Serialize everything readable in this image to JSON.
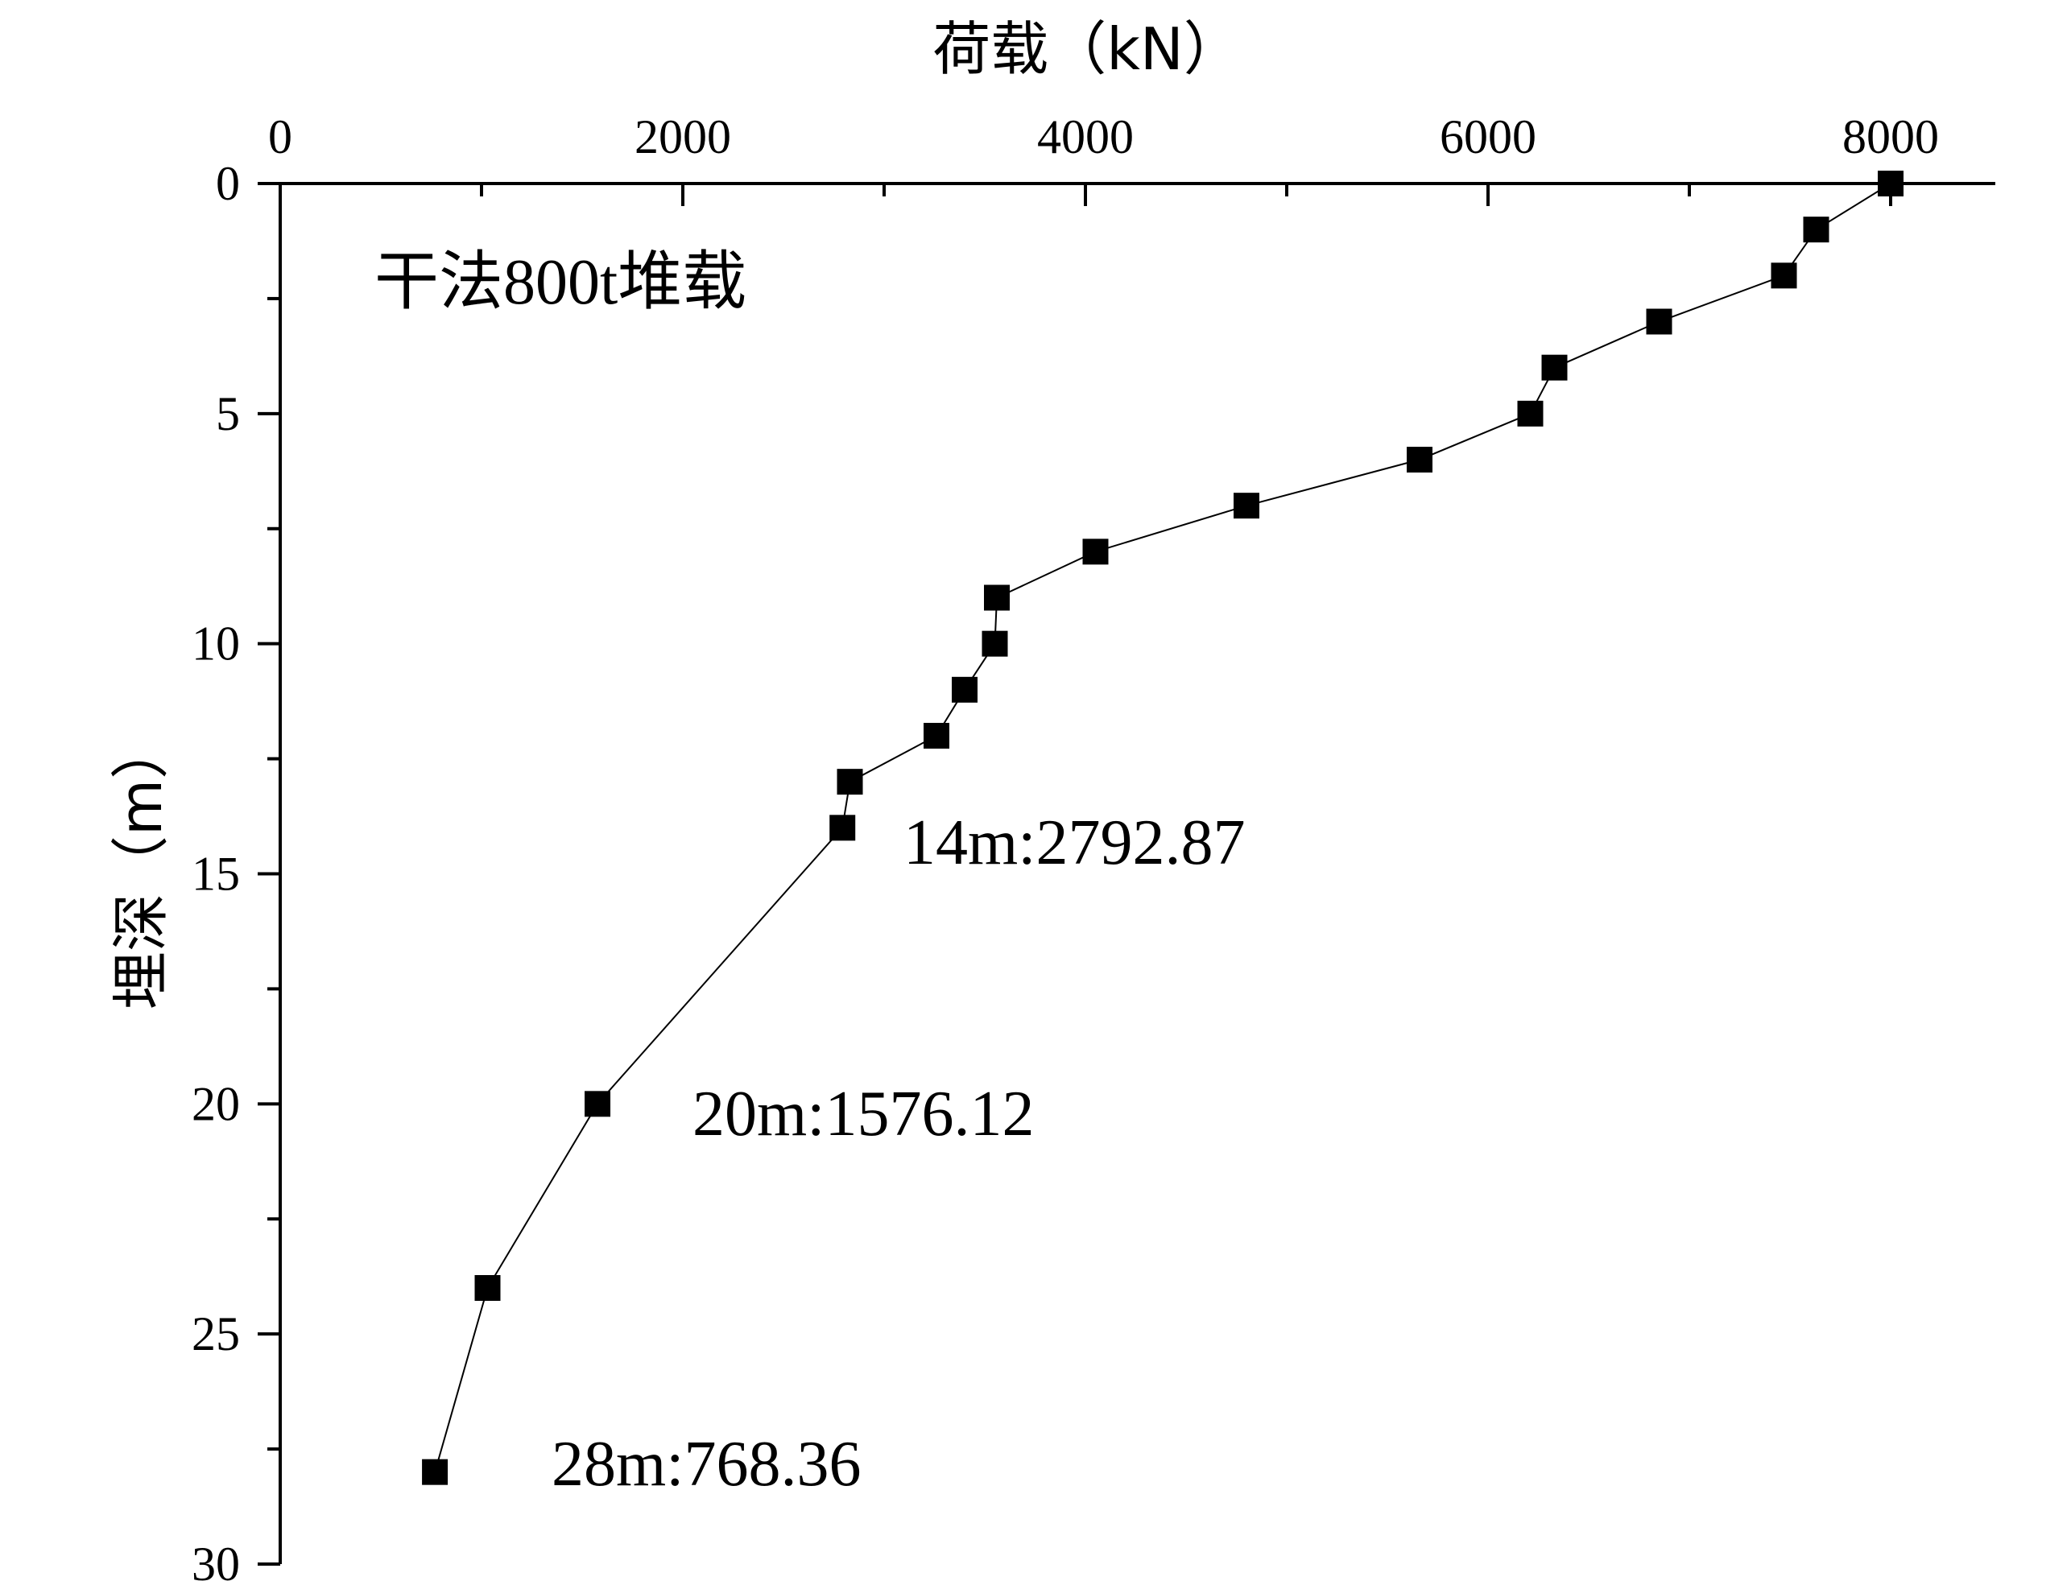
{
  "chart_data": {
    "type": "scatter",
    "title": "",
    "xlabel": "荷载（kN）",
    "ylabel": "埋深（m）",
    "xlim": [
      0,
      8500
    ],
    "ylim": [
      0,
      30
    ],
    "x_axis_position": "top",
    "y_axis_inverted": true,
    "x_ticks": [
      0,
      2000,
      4000,
      6000,
      8000
    ],
    "x_tick_labels": [
      "0",
      "2000",
      "4000",
      "6000",
      "8000"
    ],
    "y_ticks": [
      0,
      5,
      10,
      15,
      20,
      25,
      30
    ],
    "y_tick_labels": [
      "0",
      "5",
      "10",
      "15",
      "20",
      "25",
      "30"
    ],
    "grid": false,
    "series": [
      {
        "marker": "square",
        "connected": true,
        "color": "#000000",
        "points": [
          {
            "x": 8000,
            "y": 0
          },
          {
            "x": 7630,
            "y": 1
          },
          {
            "x": 7470,
            "y": 2
          },
          {
            "x": 6850,
            "y": 3
          },
          {
            "x": 6330,
            "y": 4
          },
          {
            "x": 6210,
            "y": 5
          },
          {
            "x": 5660,
            "y": 6
          },
          {
            "x": 4800,
            "y": 7
          },
          {
            "x": 4050,
            "y": 8
          },
          {
            "x": 3560,
            "y": 9
          },
          {
            "x": 3550,
            "y": 10
          },
          {
            "x": 3400,
            "y": 11
          },
          {
            "x": 3260,
            "y": 12
          },
          {
            "x": 2830,
            "y": 13
          },
          {
            "x": 2792.87,
            "y": 14
          },
          {
            "x": 1576.12,
            "y": 20
          },
          {
            "x": 1030,
            "y": 24
          },
          {
            "x": 768.36,
            "y": 28
          }
        ]
      }
    ],
    "annotations": [
      {
        "text": "干法800t堆载"
      },
      {
        "text": "14m:2792.87"
      },
      {
        "text": "20m:1576.12"
      },
      {
        "text": "28m:768.36"
      }
    ]
  }
}
